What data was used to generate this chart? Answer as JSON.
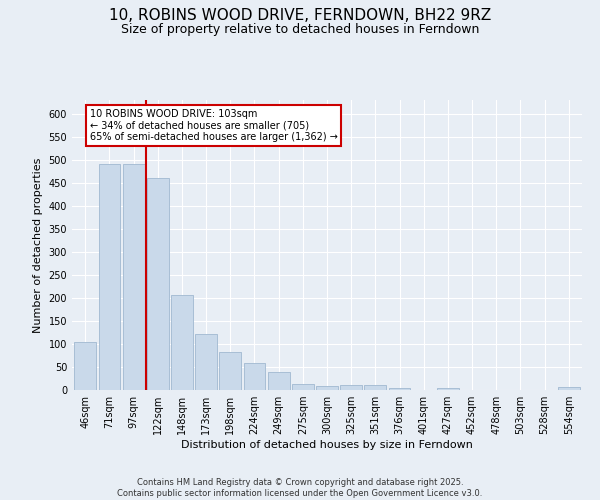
{
  "title": "10, ROBINS WOOD DRIVE, FERNDOWN, BH22 9RZ",
  "subtitle": "Size of property relative to detached houses in Ferndown",
  "xlabel": "Distribution of detached houses by size in Ferndown",
  "ylabel": "Number of detached properties",
  "footer": "Contains HM Land Registry data © Crown copyright and database right 2025.\nContains public sector information licensed under the Open Government Licence v3.0.",
  "categories": [
    "46sqm",
    "71sqm",
    "97sqm",
    "122sqm",
    "148sqm",
    "173sqm",
    "198sqm",
    "224sqm",
    "249sqm",
    "275sqm",
    "300sqm",
    "325sqm",
    "351sqm",
    "376sqm",
    "401sqm",
    "427sqm",
    "452sqm",
    "478sqm",
    "503sqm",
    "528sqm",
    "554sqm"
  ],
  "values": [
    105,
    490,
    490,
    460,
    207,
    122,
    82,
    58,
    40,
    14,
    8,
    11,
    10,
    4,
    0,
    5,
    0,
    0,
    0,
    0,
    6
  ],
  "bar_color": "#c9d9ea",
  "bar_edge_color": "#a0b8d0",
  "vline_x": 2.5,
  "vline_color": "#cc0000",
  "annotation_text": "10 ROBINS WOOD DRIVE: 103sqm\n← 34% of detached houses are smaller (705)\n65% of semi-detached houses are larger (1,362) →",
  "annotation_box_color": "white",
  "annotation_box_edge": "#cc0000",
  "ylim": [
    0,
    630
  ],
  "yticks": [
    0,
    50,
    100,
    150,
    200,
    250,
    300,
    350,
    400,
    450,
    500,
    550,
    600
  ],
  "bg_color": "#e8eef5",
  "title_fontsize": 11,
  "subtitle_fontsize": 9,
  "tick_fontsize": 7,
  "label_fontsize": 8,
  "footer_fontsize": 6
}
